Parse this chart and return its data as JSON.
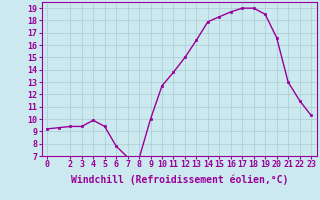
{
  "x": [
    0,
    1,
    2,
    3,
    4,
    5,
    6,
    7,
    8,
    9,
    10,
    11,
    12,
    13,
    14,
    15,
    16,
    17,
    18,
    19,
    20,
    21,
    22,
    23
  ],
  "y": [
    9.2,
    9.3,
    9.4,
    9.4,
    9.9,
    9.4,
    7.8,
    6.9,
    6.8,
    10.0,
    12.7,
    13.8,
    15.0,
    16.4,
    17.9,
    18.3,
    18.7,
    19.0,
    19.0,
    18.5,
    16.6,
    13.0,
    11.5,
    10.3
  ],
  "line_color": "#990099",
  "marker": "s",
  "marker_size": 2,
  "bg_color": "#cce9f0",
  "grid_color": "#b0d0d8",
  "xlabel": "Windchill (Refroidissement éolien,°C)",
  "xlabel_color": "#990099",
  "tick_color": "#990099",
  "xlim": [
    -0.5,
    23.5
  ],
  "ylim": [
    7,
    19.5
  ],
  "yticks": [
    7,
    8,
    9,
    10,
    11,
    12,
    13,
    14,
    15,
    16,
    17,
    18,
    19
  ],
  "xticks": [
    0,
    2,
    3,
    4,
    5,
    6,
    7,
    8,
    9,
    10,
    11,
    12,
    13,
    14,
    15,
    16,
    17,
    18,
    19,
    20,
    21,
    22,
    23
  ],
  "line_width": 1.0,
  "font_size": 6,
  "xlabel_font_size": 7
}
